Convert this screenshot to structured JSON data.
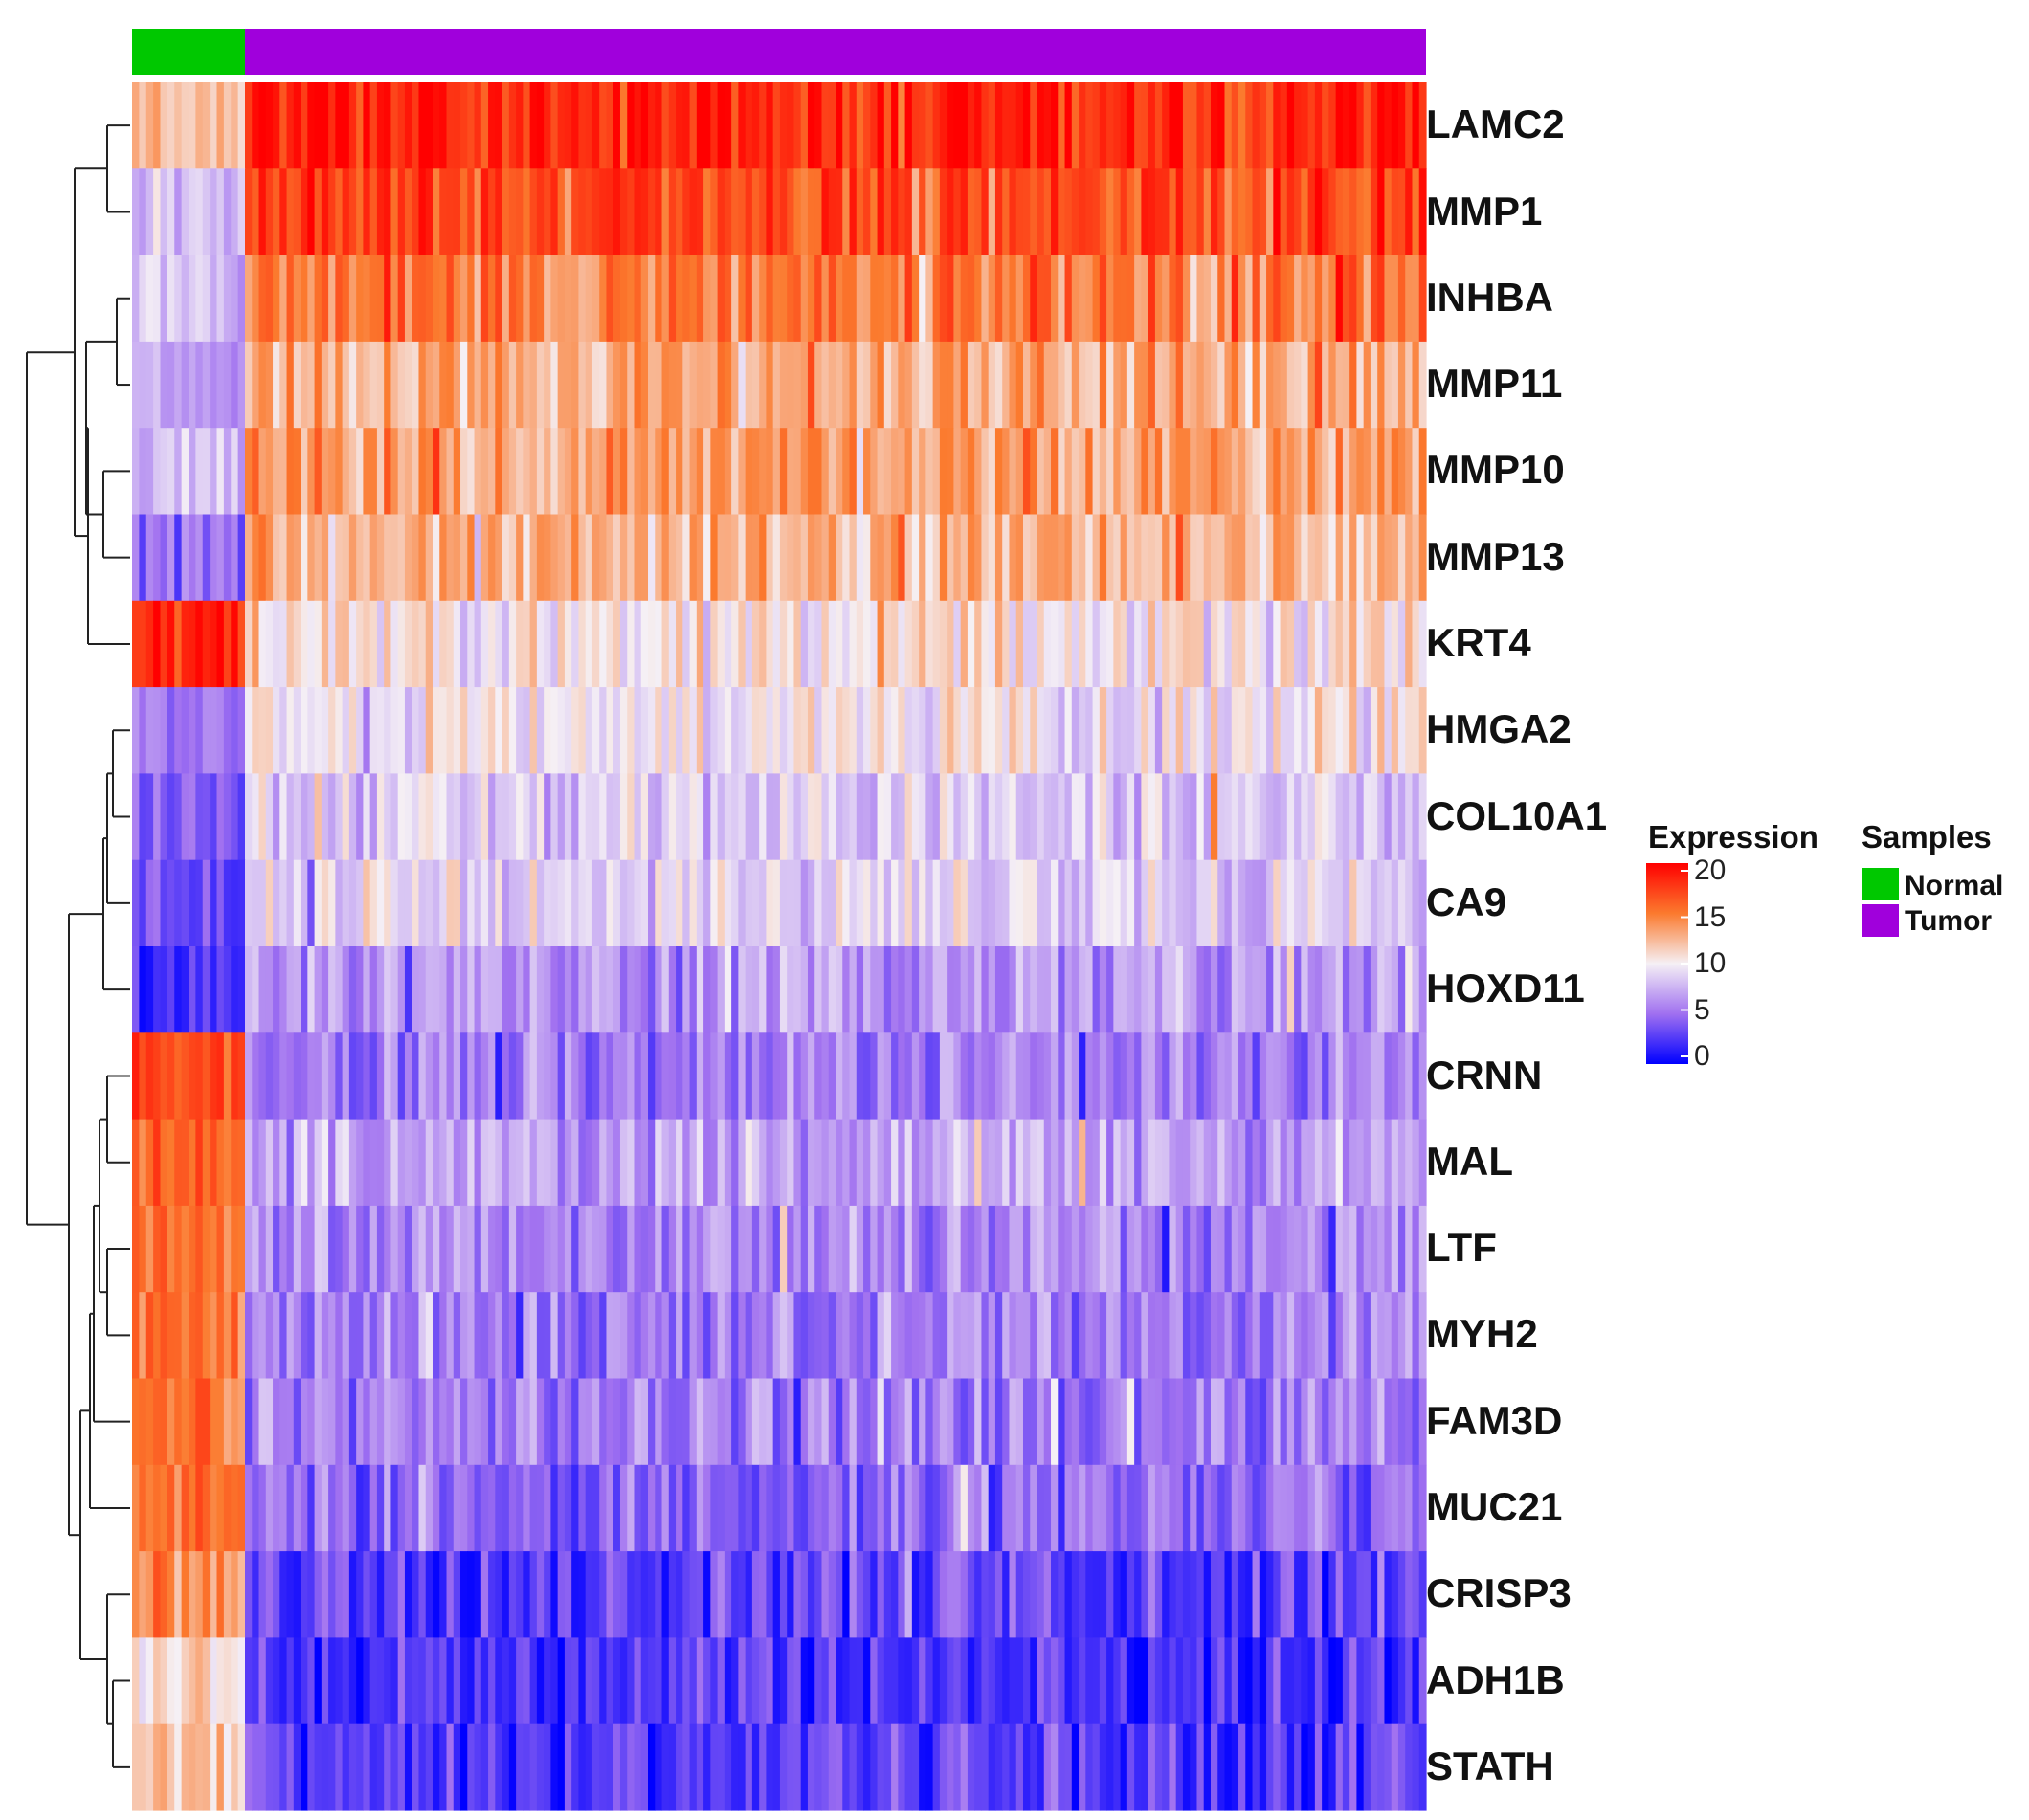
{
  "chart_data": {
    "type": "heatmap",
    "title": "",
    "rows": [
      "LAMC2",
      "MMP1",
      "INHBA",
      "MMP11",
      "MMP10",
      "MMP13",
      "KRT4",
      "HMGA2",
      "COL10A1",
      "CA9",
      "HOXD11",
      "CRNN",
      "MAL",
      "LTF",
      "MYH2",
      "FAM3D",
      "MUC21",
      "CRISP3",
      "ADH1B",
      "STATH"
    ],
    "column_groups": [
      {
        "name": "Normal",
        "count": 16
      },
      {
        "name": "Tumor",
        "count": 170
      }
    ],
    "approx_mean_expression": {
      "Normal": [
        12,
        8,
        8,
        6.5,
        7.5,
        4.5,
        18,
        5,
        4,
        3,
        2,
        17,
        16,
        15,
        15,
        15,
        15,
        14,
        11,
        12
      ],
      "Tumor": [
        18.5,
        17,
        15,
        13,
        13.5,
        12.5,
        10,
        10,
        8.5,
        9,
        6.5,
        5.5,
        7,
        6,
        5.5,
        5.5,
        4.5,
        3,
        2.5,
        2.5
      ]
    },
    "color_scale": {
      "label": "Expression",
      "min": 0,
      "max": 20,
      "ticks": [
        "20",
        "15",
        "10",
        "5",
        "0"
      ],
      "colors": [
        "#0000ff",
        "#a070f0",
        "#f5f0f5",
        "#fb7a2e",
        "#ff0000"
      ]
    },
    "annotation": {
      "label": "Samples",
      "entries": [
        {
          "name": "Normal",
          "color": "#00c800"
        },
        {
          "name": "Tumor",
          "color": "#a000dc"
        }
      ]
    },
    "row_dendrogram": true
  }
}
